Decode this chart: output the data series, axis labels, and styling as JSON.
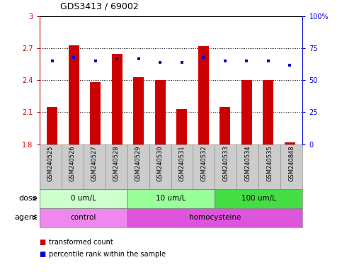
{
  "title": "GDS3413 / 69002",
  "samples": [
    "GSM240525",
    "GSM240526",
    "GSM240527",
    "GSM240528",
    "GSM240529",
    "GSM240530",
    "GSM240531",
    "GSM240532",
    "GSM240533",
    "GSM240534",
    "GSM240535",
    "GSM240848"
  ],
  "transformed_count": [
    2.15,
    2.73,
    2.38,
    2.65,
    2.43,
    2.4,
    2.13,
    2.72,
    2.15,
    2.4,
    2.4,
    1.82
  ],
  "percentile_rank": [
    65,
    68,
    65,
    67,
    67,
    64,
    64,
    68,
    65,
    65,
    65,
    62
  ],
  "bar_bottom": 1.8,
  "ylim_left": [
    1.8,
    3.0
  ],
  "ylim_right": [
    0,
    100
  ],
  "yticks_left": [
    1.8,
    2.1,
    2.4,
    2.7,
    3.0
  ],
  "ytick_labels_left": [
    "1.8",
    "2.1",
    "2.4",
    "2.7",
    "3"
  ],
  "yticks_right": [
    0,
    25,
    50,
    75,
    100
  ],
  "ytick_labels_right": [
    "0",
    "25",
    "50",
    "75",
    "100%"
  ],
  "bar_color": "#cc0000",
  "dot_color": "#0000cc",
  "bar_width": 0.5,
  "dose_groups": [
    {
      "label": "0 um/L",
      "start": 0,
      "end": 4,
      "color": "#ccffcc"
    },
    {
      "label": "10 um/L",
      "start": 4,
      "end": 8,
      "color": "#99ff99"
    },
    {
      "label": "100 um/L",
      "start": 8,
      "end": 12,
      "color": "#44dd44"
    }
  ],
  "agent_groups": [
    {
      "label": "control",
      "start": 0,
      "end": 4,
      "color": "#ee88ee"
    },
    {
      "label": "homocysteine",
      "start": 4,
      "end": 12,
      "color": "#dd55dd"
    }
  ],
  "dose_label": "dose",
  "agent_label": "agent",
  "legend_bar_label": "transformed count",
  "legend_dot_label": "percentile rank within the sample",
  "background_color": "#ffffff",
  "tick_area_color": "#cccccc"
}
